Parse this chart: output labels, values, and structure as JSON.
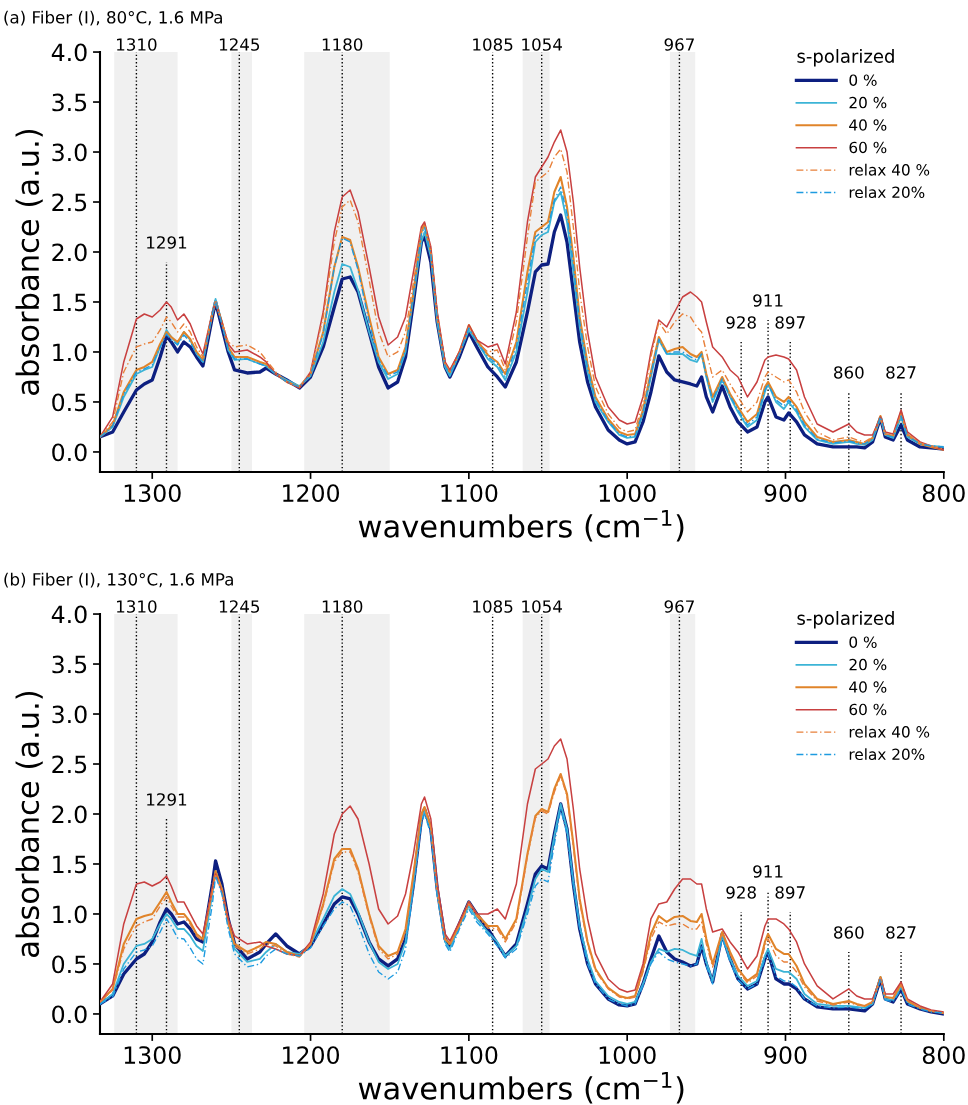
{
  "chart_data": [
    {
      "type": "line",
      "title": "(a) Fiber (I), 80°C, 1.6 MPa",
      "xlabel": "wavenumbers (cm$^{−1}$)",
      "ylabel": "absorbance (a.u.)",
      "legend_title": "s-polarized",
      "legend": "top right",
      "grid": false,
      "xlim": [
        1333,
        800
      ],
      "xticks": [
        1300,
        1200,
        1100,
        1000,
        900,
        800
      ],
      "ylim": [
        -0.2,
        4.0
      ],
      "yticks": [
        {
          "value": 0,
          "label": "0.0"
        },
        {
          "value": 0.5,
          "label": "0.5"
        },
        {
          "value": 1,
          "label": "1.0"
        },
        {
          "value": 1.5,
          "label": "1.5"
        },
        {
          "value": 2,
          "label": "2.0"
        },
        {
          "value": 2.5,
          "label": "2.5"
        },
        {
          "value": 3,
          "label": "3.0"
        },
        {
          "value": 3.5,
          "label": "3.5"
        },
        {
          "value": 4,
          "label": "4.0"
        }
      ],
      "x": [
        1333,
        1325,
        1318,
        1310,
        1305,
        1300,
        1295,
        1291,
        1288,
        1284,
        1280,
        1276,
        1272,
        1268,
        1262,
        1260,
        1256,
        1252,
        1248,
        1240,
        1232,
        1228,
        1222,
        1215,
        1207,
        1200,
        1192,
        1185,
        1180,
        1175,
        1170,
        1163,
        1157,
        1151,
        1145,
        1140,
        1135,
        1130,
        1128,
        1124,
        1120,
        1115,
        1112,
        1106,
        1100,
        1095,
        1088,
        1082,
        1077,
        1070,
        1063,
        1058,
        1054,
        1050,
        1046,
        1042,
        1038,
        1034,
        1030,
        1025,
        1020,
        1012,
        1005,
        1000,
        995,
        990,
        985,
        980,
        975,
        970,
        965,
        960,
        956,
        953,
        950,
        946,
        940,
        935,
        930,
        924,
        918,
        913,
        911,
        906,
        901,
        898,
        893,
        888,
        880,
        870,
        860,
        855,
        850,
        845,
        840,
        837,
        832,
        827,
        823,
        815,
        808,
        800
      ],
      "series": [
        {
          "name": "0 %",
          "color": "#0d1f80",
          "line_style": "solid",
          "values": [
            0.15,
            0.2,
            0.4,
            0.62,
            0.68,
            0.72,
            0.95,
            1.16,
            1.1,
            1.0,
            1.1,
            1.05,
            0.95,
            0.86,
            1.35,
            1.5,
            1.25,
            1.0,
            0.82,
            0.79,
            0.8,
            0.84,
            0.78,
            0.72,
            0.64,
            0.75,
            1.05,
            1.45,
            1.73,
            1.75,
            1.6,
            1.2,
            0.85,
            0.64,
            0.7,
            0.95,
            1.5,
            2.1,
            2.16,
            1.9,
            1.3,
            0.85,
            0.75,
            0.95,
            1.2,
            1.05,
            0.85,
            0.75,
            0.65,
            0.9,
            1.4,
            1.8,
            1.87,
            1.88,
            2.2,
            2.37,
            2.1,
            1.6,
            1.1,
            0.7,
            0.45,
            0.22,
            0.12,
            0.08,
            0.1,
            0.3,
            0.6,
            0.96,
            0.8,
            0.72,
            0.7,
            0.68,
            0.66,
            0.75,
            0.55,
            0.4,
            0.66,
            0.45,
            0.3,
            0.2,
            0.25,
            0.5,
            0.55,
            0.35,
            0.32,
            0.39,
            0.3,
            0.17,
            0.08,
            0.05,
            0.05,
            0.05,
            0.04,
            0.1,
            0.34,
            0.15,
            0.12,
            0.27,
            0.12,
            0.05,
            0.04,
            0.03
          ]
        },
        {
          "name": "20 %",
          "color": "#3cb4d6",
          "line_style": "solid",
          "values": [
            0.15,
            0.25,
            0.55,
            0.78,
            0.82,
            0.85,
            1.05,
            1.22,
            1.15,
            1.08,
            1.2,
            1.12,
            0.98,
            0.9,
            1.4,
            1.53,
            1.3,
            1.02,
            0.92,
            0.93,
            0.88,
            0.86,
            0.78,
            0.72,
            0.66,
            0.76,
            1.1,
            1.6,
            1.88,
            1.85,
            1.62,
            1.2,
            0.9,
            0.73,
            0.78,
            1.0,
            1.55,
            2.1,
            2.2,
            1.95,
            1.3,
            0.85,
            0.76,
            0.98,
            1.22,
            1.1,
            0.93,
            0.85,
            0.72,
            1.0,
            1.6,
            2.1,
            2.17,
            2.2,
            2.5,
            2.6,
            2.3,
            1.8,
            1.25,
            0.8,
            0.5,
            0.3,
            0.17,
            0.14,
            0.15,
            0.38,
            0.75,
            1.12,
            0.98,
            0.98,
            0.98,
            0.92,
            0.9,
            0.98,
            0.75,
            0.5,
            0.72,
            0.55,
            0.4,
            0.25,
            0.32,
            0.6,
            0.68,
            0.5,
            0.43,
            0.5,
            0.4,
            0.25,
            0.12,
            0.08,
            0.1,
            0.08,
            0.07,
            0.12,
            0.34,
            0.17,
            0.14,
            0.35,
            0.15,
            0.08,
            0.06,
            0.05
          ]
        },
        {
          "name": "40 %",
          "color": "#e0842a",
          "line_style": "solid",
          "values": [
            0.15,
            0.27,
            0.6,
            0.82,
            0.85,
            0.9,
            1.08,
            1.2,
            1.15,
            1.1,
            1.2,
            1.13,
            1.0,
            0.92,
            1.38,
            1.5,
            1.3,
            1.05,
            0.95,
            0.95,
            0.9,
            0.88,
            0.78,
            0.7,
            0.65,
            0.78,
            1.2,
            1.85,
            2.15,
            2.12,
            1.85,
            1.35,
            0.95,
            0.78,
            0.82,
            1.05,
            1.6,
            2.2,
            2.28,
            2.0,
            1.35,
            0.88,
            0.8,
            1.0,
            1.27,
            1.12,
            0.97,
            0.9,
            0.78,
            1.1,
            1.8,
            2.2,
            2.25,
            2.3,
            2.6,
            2.75,
            2.45,
            1.95,
            1.35,
            0.88,
            0.55,
            0.33,
            0.2,
            0.17,
            0.18,
            0.42,
            0.8,
            1.15,
            1.0,
            1.03,
            1.05,
            0.98,
            0.95,
            1.0,
            0.78,
            0.55,
            0.75,
            0.58,
            0.45,
            0.3,
            0.38,
            0.65,
            0.7,
            0.55,
            0.5,
            0.55,
            0.45,
            0.3,
            0.15,
            0.1,
            0.12,
            0.1,
            0.08,
            0.14,
            0.36,
            0.18,
            0.16,
            0.4,
            0.17,
            0.08,
            0.05,
            0.02
          ]
        },
        {
          "name": "60 %",
          "color": "#c84040",
          "line_style": "solid",
          "values": [
            0.15,
            0.35,
            0.9,
            1.33,
            1.38,
            1.35,
            1.42,
            1.5,
            1.45,
            1.32,
            1.38,
            1.28,
            1.12,
            0.98,
            1.4,
            1.5,
            1.3,
            1.08,
            1.0,
            1.02,
            0.95,
            0.9,
            0.78,
            0.7,
            0.64,
            0.8,
            1.4,
            2.2,
            2.55,
            2.62,
            2.4,
            1.85,
            1.35,
            1.07,
            1.15,
            1.35,
            1.8,
            2.25,
            2.3,
            2.05,
            1.4,
            0.9,
            0.82,
            1.0,
            1.27,
            1.12,
            1.05,
            1.08,
            0.88,
            1.4,
            2.3,
            2.75,
            2.85,
            2.95,
            3.1,
            3.22,
            3.0,
            2.5,
            1.85,
            1.2,
            0.75,
            0.45,
            0.32,
            0.28,
            0.3,
            0.55,
            1.0,
            1.32,
            1.25,
            1.4,
            1.55,
            1.6,
            1.55,
            1.5,
            1.3,
            1.05,
            0.95,
            0.82,
            0.75,
            0.55,
            0.7,
            0.92,
            0.95,
            0.97,
            0.95,
            0.93,
            0.82,
            0.55,
            0.28,
            0.2,
            0.28,
            0.2,
            0.17,
            0.17,
            0.35,
            0.2,
            0.18,
            0.42,
            0.2,
            0.1,
            0.06,
            0.02
          ]
        },
        {
          "name": "relax 40 %",
          "color": "#e8803a",
          "line_style": "dashed",
          "values": [
            0.15,
            0.3,
            0.8,
            1.05,
            1.08,
            1.1,
            1.22,
            1.35,
            1.3,
            1.2,
            1.28,
            1.2,
            1.05,
            0.95,
            1.4,
            1.5,
            1.3,
            1.1,
            1.05,
            1.07,
            1.0,
            0.92,
            0.8,
            0.7,
            0.65,
            0.8,
            1.35,
            2.1,
            2.45,
            2.52,
            2.3,
            1.72,
            1.2,
            0.95,
            1.0,
            1.2,
            1.7,
            2.22,
            2.28,
            2.02,
            1.38,
            0.88,
            0.8,
            0.98,
            1.25,
            1.1,
            1.0,
            1.02,
            0.82,
            1.3,
            2.15,
            2.7,
            2.75,
            2.8,
            2.95,
            3.03,
            2.8,
            2.25,
            1.6,
            1.05,
            0.65,
            0.38,
            0.24,
            0.2,
            0.22,
            0.5,
            0.95,
            1.3,
            1.18,
            1.3,
            1.38,
            1.35,
            1.25,
            1.2,
            1.0,
            0.75,
            0.82,
            0.68,
            0.55,
            0.4,
            0.5,
            0.75,
            0.8,
            0.75,
            0.7,
            0.72,
            0.6,
            0.4,
            0.2,
            0.12,
            0.15,
            0.12,
            0.1,
            0.15,
            0.33,
            0.18,
            0.16,
            0.38,
            0.18,
            0.09,
            0.06,
            0.03
          ]
        },
        {
          "name": "relax 20%",
          "color": "#1e9be0",
          "line_style": "dashed",
          "values": [
            0.15,
            0.26,
            0.58,
            0.8,
            0.83,
            0.87,
            1.05,
            1.18,
            1.12,
            1.07,
            1.17,
            1.1,
            0.98,
            0.9,
            1.38,
            1.5,
            1.28,
            1.03,
            0.93,
            0.93,
            0.88,
            0.86,
            0.78,
            0.7,
            0.65,
            0.77,
            1.18,
            1.85,
            2.14,
            2.1,
            1.82,
            1.3,
            0.92,
            0.76,
            0.8,
            1.02,
            1.58,
            2.18,
            2.25,
            1.98,
            1.33,
            0.86,
            0.78,
            0.98,
            1.24,
            1.1,
            0.95,
            0.88,
            0.75,
            1.05,
            1.7,
            2.15,
            2.2,
            2.25,
            2.52,
            2.65,
            2.38,
            1.88,
            1.3,
            0.84,
            0.52,
            0.31,
            0.18,
            0.15,
            0.16,
            0.4,
            0.78,
            1.13,
            0.98,
            1.0,
            1.0,
            0.95,
            0.92,
            0.98,
            0.76,
            0.52,
            0.73,
            0.56,
            0.42,
            0.27,
            0.35,
            0.62,
            0.68,
            0.52,
            0.46,
            0.52,
            0.42,
            0.27,
            0.13,
            0.09,
            0.11,
            0.09,
            0.08,
            0.13,
            0.35,
            0.17,
            0.15,
            0.36,
            0.16,
            0.08,
            0.06,
            0.05
          ]
        }
      ],
      "ref_lines": [
        {
          "axis": "x",
          "value": 1310,
          "label": "1310",
          "color": "#000000",
          "line_style": "dotted"
        },
        {
          "axis": "x",
          "value": 1291,
          "label": "1291",
          "color": "#000000",
          "line_style": "dotted"
        },
        {
          "axis": "x",
          "value": 1245,
          "label": "1245",
          "color": "#000000",
          "line_style": "dotted"
        },
        {
          "axis": "x",
          "value": 1180,
          "label": "1180",
          "color": "#000000",
          "line_style": "dotted"
        },
        {
          "axis": "x",
          "value": 1085,
          "label": "1085",
          "color": "#000000",
          "line_style": "dotted"
        },
        {
          "axis": "x",
          "value": 1054,
          "label": "1054",
          "color": "#000000",
          "line_style": "dotted"
        },
        {
          "axis": "x",
          "value": 967,
          "label": "967",
          "color": "#000000",
          "line_style": "dotted"
        },
        {
          "axis": "x",
          "value": 928,
          "label": "928",
          "color": "#000000",
          "line_style": "dotted"
        },
        {
          "axis": "x",
          "value": 911,
          "label": "911",
          "color": "#000000",
          "line_style": "dotted"
        },
        {
          "axis": "x",
          "value": 897,
          "label": "897",
          "color": "#000000",
          "line_style": "dotted"
        },
        {
          "axis": "x",
          "value": 860,
          "label": "860",
          "color": "#000000",
          "line_style": "dotted"
        },
        {
          "axis": "x",
          "value": 827,
          "label": "827",
          "color": "#000000",
          "line_style": "dotted"
        }
      ],
      "bands": [
        {
          "axis": "x",
          "from": 1324,
          "to": 1284,
          "color": "#f0f0f0"
        },
        {
          "axis": "x",
          "from": 1250,
          "to": 1237,
          "color": "#f0f0f0"
        },
        {
          "axis": "x",
          "from": 1204,
          "to": 1150,
          "color": "#f0f0f0"
        },
        {
          "axis": "x",
          "from": 1066,
          "to": 1049,
          "color": "#f0f0f0"
        },
        {
          "axis": "x",
          "from": 973,
          "to": 957,
          "color": "#f0f0f0"
        }
      ]
    },
    {
      "type": "line",
      "title": "(b) Fiber (I), 130°C, 1.6 MPa",
      "xlabel": "wavenumbers (cm$^{−1}$)",
      "ylabel": "absorbance (a.u.)",
      "legend_title": "s-polarized",
      "legend": "top right",
      "grid": false,
      "xlim": [
        1333,
        800
      ],
      "xticks": [
        1300,
        1200,
        1100,
        1000,
        900,
        800
      ],
      "ylim": [
        -0.2,
        4.0
      ],
      "yticks": [
        {
          "value": 0,
          "label": "0.0"
        },
        {
          "value": 0.5,
          "label": "0.5"
        },
        {
          "value": 1,
          "label": "1.0"
        },
        {
          "value": 1.5,
          "label": "1.5"
        },
        {
          "value": 2,
          "label": "2.0"
        },
        {
          "value": 2.5,
          "label": "2.5"
        },
        {
          "value": 3,
          "label": "3.0"
        },
        {
          "value": 3.5,
          "label": "3.5"
        },
        {
          "value": 4,
          "label": "4.0"
        }
      ],
      "x": [
        1333,
        1325,
        1318,
        1310,
        1305,
        1300,
        1295,
        1291,
        1288,
        1284,
        1280,
        1276,
        1272,
        1268,
        1262,
        1260,
        1256,
        1252,
        1248,
        1240,
        1232,
        1228,
        1222,
        1215,
        1207,
        1200,
        1192,
        1185,
        1180,
        1175,
        1170,
        1163,
        1157,
        1151,
        1145,
        1140,
        1135,
        1130,
        1128,
        1124,
        1120,
        1115,
        1112,
        1106,
        1100,
        1095,
        1088,
        1082,
        1077,
        1070,
        1063,
        1058,
        1054,
        1050,
        1046,
        1042,
        1038,
        1034,
        1030,
        1025,
        1020,
        1012,
        1005,
        1000,
        995,
        990,
        985,
        980,
        975,
        970,
        965,
        960,
        956,
        953,
        950,
        946,
        940,
        935,
        930,
        924,
        918,
        913,
        911,
        906,
        901,
        898,
        893,
        888,
        880,
        870,
        860,
        855,
        850,
        845,
        840,
        837,
        832,
        827,
        823,
        815,
        808,
        800
      ],
      "series": [
        {
          "name": "0 %",
          "color": "#0d1f80",
          "line_style": "solid",
          "values": [
            0.1,
            0.18,
            0.4,
            0.55,
            0.6,
            0.72,
            0.92,
            1.05,
            1.0,
            0.9,
            0.92,
            0.85,
            0.75,
            0.72,
            1.3,
            1.53,
            1.3,
            0.95,
            0.7,
            0.55,
            0.62,
            0.7,
            0.8,
            0.68,
            0.6,
            0.68,
            0.9,
            1.1,
            1.17,
            1.15,
            1.0,
            0.72,
            0.55,
            0.48,
            0.55,
            0.75,
            1.3,
            1.95,
            2.05,
            1.85,
            1.25,
            0.75,
            0.68,
            0.9,
            1.12,
            1.0,
            0.85,
            0.7,
            0.58,
            0.7,
            1.1,
            1.4,
            1.48,
            1.45,
            1.8,
            2.1,
            1.85,
            1.3,
            0.85,
            0.5,
            0.3,
            0.15,
            0.09,
            0.08,
            0.1,
            0.3,
            0.55,
            0.78,
            0.62,
            0.55,
            0.52,
            0.48,
            0.5,
            0.68,
            0.5,
            0.32,
            0.8,
            0.55,
            0.35,
            0.25,
            0.3,
            0.55,
            0.62,
            0.35,
            0.3,
            0.3,
            0.25,
            0.15,
            0.07,
            0.05,
            0.05,
            0.04,
            0.03,
            0.1,
            0.35,
            0.15,
            0.12,
            0.25,
            0.1,
            0.05,
            0.02,
            0.0
          ]
        },
        {
          "name": "20 %",
          "color": "#3cb4d6",
          "line_style": "solid",
          "values": [
            0.1,
            0.2,
            0.5,
            0.68,
            0.7,
            0.75,
            0.9,
            1.0,
            0.95,
            0.85,
            0.85,
            0.78,
            0.68,
            0.63,
            1.2,
            1.43,
            1.25,
            0.9,
            0.65,
            0.52,
            0.55,
            0.62,
            0.7,
            0.62,
            0.6,
            0.7,
            0.95,
            1.18,
            1.25,
            1.2,
            1.02,
            0.72,
            0.52,
            0.45,
            0.5,
            0.72,
            1.3,
            1.95,
            2.03,
            1.85,
            1.22,
            0.72,
            0.65,
            0.88,
            1.08,
            0.95,
            0.82,
            0.72,
            0.58,
            0.68,
            1.05,
            1.35,
            1.45,
            1.42,
            1.78,
            2.1,
            1.85,
            1.32,
            0.88,
            0.55,
            0.33,
            0.18,
            0.12,
            0.1,
            0.12,
            0.3,
            0.52,
            0.65,
            0.62,
            0.65,
            0.64,
            0.6,
            0.58,
            0.75,
            0.52,
            0.33,
            0.78,
            0.55,
            0.38,
            0.28,
            0.33,
            0.58,
            0.65,
            0.45,
            0.42,
            0.42,
            0.35,
            0.2,
            0.1,
            0.08,
            0.08,
            0.07,
            0.06,
            0.1,
            0.37,
            0.15,
            0.14,
            0.27,
            0.12,
            0.06,
            0.03,
            0.01
          ]
        },
        {
          "name": "40 %",
          "color": "#e0842a",
          "line_style": "solid",
          "values": [
            0.12,
            0.25,
            0.7,
            0.95,
            0.98,
            1.0,
            1.12,
            1.22,
            1.12,
            1.0,
            1.0,
            0.92,
            0.8,
            0.75,
            1.25,
            1.43,
            1.25,
            0.92,
            0.7,
            0.62,
            0.68,
            0.72,
            0.7,
            0.62,
            0.58,
            0.7,
            1.1,
            1.55,
            1.65,
            1.65,
            1.45,
            1.0,
            0.68,
            0.58,
            0.62,
            0.85,
            1.4,
            2.0,
            2.07,
            1.88,
            1.25,
            0.75,
            0.7,
            0.9,
            1.12,
            1.0,
            0.88,
            0.88,
            0.75,
            0.95,
            1.6,
            1.98,
            2.05,
            2.02,
            2.25,
            2.4,
            2.2,
            1.7,
            1.15,
            0.72,
            0.45,
            0.26,
            0.18,
            0.16,
            0.18,
            0.45,
            0.8,
            0.98,
            0.92,
            0.97,
            0.98,
            0.93,
            0.92,
            1.0,
            0.75,
            0.5,
            0.82,
            0.62,
            0.45,
            0.33,
            0.4,
            0.72,
            0.8,
            0.65,
            0.6,
            0.6,
            0.48,
            0.3,
            0.15,
            0.1,
            0.13,
            0.1,
            0.08,
            0.12,
            0.37,
            0.17,
            0.16,
            0.3,
            0.13,
            0.06,
            0.03,
            0.01
          ]
        },
        {
          "name": "60 %",
          "color": "#c84040",
          "line_style": "solid",
          "values": [
            0.12,
            0.3,
            0.9,
            1.3,
            1.32,
            1.28,
            1.32,
            1.38,
            1.28,
            1.12,
            1.12,
            1.0,
            0.88,
            0.8,
            1.25,
            1.4,
            1.22,
            0.95,
            0.78,
            0.7,
            0.72,
            0.68,
            0.65,
            0.6,
            0.58,
            0.72,
            1.2,
            1.8,
            2.0,
            2.08,
            1.95,
            1.5,
            1.05,
            0.9,
            0.98,
            1.2,
            1.6,
            2.1,
            2.17,
            1.95,
            1.3,
            0.8,
            0.73,
            0.92,
            1.12,
            1.0,
            1.0,
            1.05,
            0.95,
            1.3,
            2.1,
            2.45,
            2.5,
            2.55,
            2.68,
            2.75,
            2.55,
            2.05,
            1.45,
            0.95,
            0.6,
            0.35,
            0.25,
            0.22,
            0.24,
            0.5,
            0.95,
            1.1,
            1.12,
            1.25,
            1.35,
            1.35,
            1.3,
            1.3,
            1.05,
            0.82,
            0.85,
            0.72,
            0.62,
            0.45,
            0.58,
            0.88,
            0.95,
            0.95,
            0.9,
            0.85,
            0.72,
            0.5,
            0.28,
            0.15,
            0.25,
            0.18,
            0.15,
            0.15,
            0.35,
            0.2,
            0.2,
            0.32,
            0.15,
            0.08,
            0.04,
            0.02
          ]
        },
        {
          "name": "relax 40 %",
          "color": "#e8803a",
          "line_style": "dashed",
          "values": [
            0.12,
            0.24,
            0.65,
            0.88,
            0.92,
            0.95,
            1.08,
            1.17,
            1.08,
            0.97,
            0.97,
            0.9,
            0.78,
            0.73,
            1.22,
            1.4,
            1.22,
            0.9,
            0.68,
            0.6,
            0.65,
            0.7,
            0.68,
            0.6,
            0.57,
            0.7,
            1.08,
            1.52,
            1.62,
            1.62,
            1.42,
            0.98,
            0.65,
            0.55,
            0.6,
            0.82,
            1.38,
            1.98,
            2.05,
            1.86,
            1.23,
            0.74,
            0.69,
            0.88,
            1.1,
            0.98,
            0.86,
            0.85,
            0.72,
            0.92,
            1.58,
            1.96,
            2.03,
            2.0,
            2.22,
            2.38,
            2.18,
            1.68,
            1.12,
            0.7,
            0.43,
            0.25,
            0.17,
            0.15,
            0.17,
            0.42,
            0.75,
            0.92,
            0.88,
            0.9,
            0.9,
            0.85,
            0.85,
            0.92,
            0.7,
            0.47,
            0.8,
            0.6,
            0.43,
            0.31,
            0.38,
            0.68,
            0.75,
            0.58,
            0.52,
            0.52,
            0.42,
            0.27,
            0.13,
            0.09,
            0.12,
            0.09,
            0.08,
            0.12,
            0.36,
            0.17,
            0.15,
            0.29,
            0.13,
            0.06,
            0.03,
            0.01
          ]
        },
        {
          "name": "relax 20%",
          "color": "#1e9be0",
          "line_style": "dashed",
          "values": [
            0.1,
            0.17,
            0.45,
            0.62,
            0.64,
            0.68,
            0.82,
            0.95,
            0.88,
            0.76,
            0.75,
            0.66,
            0.55,
            0.5,
            1.1,
            1.38,
            1.2,
            0.85,
            0.6,
            0.47,
            0.5,
            0.58,
            0.65,
            0.6,
            0.58,
            0.66,
            0.88,
            1.05,
            1.12,
            1.08,
            0.9,
            0.6,
            0.42,
            0.35,
            0.42,
            0.65,
            1.25,
            1.9,
            2.0,
            1.8,
            1.18,
            0.7,
            0.62,
            0.85,
            1.05,
            0.92,
            0.8,
            0.68,
            0.56,
            0.65,
            1.0,
            1.28,
            1.35,
            1.32,
            1.7,
            2.05,
            1.8,
            1.28,
            0.85,
            0.5,
            0.3,
            0.15,
            0.1,
            0.08,
            0.1,
            0.28,
            0.5,
            0.62,
            0.55,
            0.52,
            0.5,
            0.48,
            0.5,
            0.68,
            0.48,
            0.3,
            0.76,
            0.52,
            0.34,
            0.25,
            0.3,
            0.55,
            0.6,
            0.38,
            0.33,
            0.33,
            0.27,
            0.15,
            0.08,
            0.06,
            0.07,
            0.06,
            0.05,
            0.1,
            0.35,
            0.14,
            0.12,
            0.25,
            0.1,
            0.05,
            0.02,
            0.01
          ]
        }
      ],
      "ref_lines": [
        {
          "axis": "x",
          "value": 1310,
          "label": "1310",
          "color": "#000000",
          "line_style": "dotted"
        },
        {
          "axis": "x",
          "value": 1291,
          "label": "1291",
          "color": "#000000",
          "line_style": "dotted"
        },
        {
          "axis": "x",
          "value": 1245,
          "label": "1245",
          "color": "#000000",
          "line_style": "dotted"
        },
        {
          "axis": "x",
          "value": 1180,
          "label": "1180",
          "color": "#000000",
          "line_style": "dotted"
        },
        {
          "axis": "x",
          "value": 1085,
          "label": "1085",
          "color": "#000000",
          "line_style": "dotted"
        },
        {
          "axis": "x",
          "value": 1054,
          "label": "1054",
          "color": "#000000",
          "line_style": "dotted"
        },
        {
          "axis": "x",
          "value": 967,
          "label": "967",
          "color": "#000000",
          "line_style": "dotted"
        },
        {
          "axis": "x",
          "value": 928,
          "label": "928",
          "color": "#000000",
          "line_style": "dotted"
        },
        {
          "axis": "x",
          "value": 911,
          "label": "911",
          "color": "#000000",
          "line_style": "dotted"
        },
        {
          "axis": "x",
          "value": 897,
          "label": "897",
          "color": "#000000",
          "line_style": "dotted"
        },
        {
          "axis": "x",
          "value": 860,
          "label": "860",
          "color": "#000000",
          "line_style": "dotted"
        },
        {
          "axis": "x",
          "value": 827,
          "label": "827",
          "color": "#000000",
          "line_style": "dotted"
        }
      ],
      "bands": [
        {
          "axis": "x",
          "from": 1324,
          "to": 1284,
          "color": "#f0f0f0"
        },
        {
          "axis": "x",
          "from": 1250,
          "to": 1237,
          "color": "#f0f0f0"
        },
        {
          "axis": "x",
          "from": 1204,
          "to": 1150,
          "color": "#f0f0f0"
        },
        {
          "axis": "x",
          "from": 1066,
          "to": 1049,
          "color": "#f0f0f0"
        },
        {
          "axis": "x",
          "from": 973,
          "to": 957,
          "color": "#f0f0f0"
        }
      ]
    }
  ]
}
